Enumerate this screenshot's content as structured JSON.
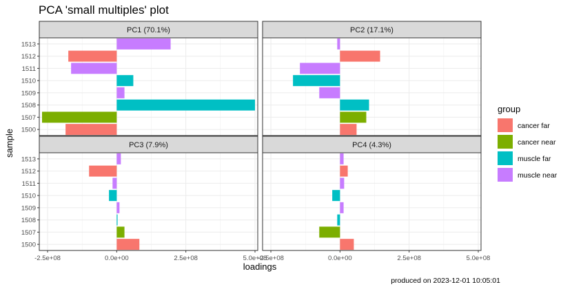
{
  "chart_data": {
    "type": "bar",
    "orientation": "horizontal",
    "title": "PCA 'small multiples' plot",
    "xlabel": "loadings",
    "ylabel": "sample",
    "caption": "produced on 2023-12-01 10:05:01",
    "xlim": [
      -280000000,
      510000000
    ],
    "x_ticks": [
      -250000000,
      0,
      250000000,
      500000000
    ],
    "x_tick_labels": [
      "-2.5e+08",
      "0.0e+00",
      "2.5e+08",
      "5.0e+08"
    ],
    "categories": [
      "1513",
      "1512",
      "1511",
      "1510",
      "1509",
      "1508",
      "1507",
      "1500"
    ],
    "sample_groups": [
      "muscle near",
      "cancer far",
      "muscle near",
      "muscle far",
      "muscle near",
      "muscle far",
      "cancer near",
      "cancer far"
    ],
    "legend": {
      "title": "group",
      "position": "right",
      "entries": [
        {
          "label": "cancer far",
          "color": "#F8766D"
        },
        {
          "label": "cancer near",
          "color": "#7CAE00"
        },
        {
          "label": "muscle far",
          "color": "#00BFC4"
        },
        {
          "label": "muscle near",
          "color": "#C77CFF"
        }
      ]
    },
    "grid": true,
    "panels": [
      {
        "label": "PC1 (70.1%)",
        "values": [
          195000000,
          -175000000,
          -165000000,
          60000000,
          28000000,
          500000000,
          -270000000,
          -185000000
        ]
      },
      {
        "label": "PC2 (17.1%)",
        "values": [
          -10000000,
          145000000,
          -145000000,
          -170000000,
          -75000000,
          105000000,
          95000000,
          60000000
        ]
      },
      {
        "label": "PC3 (7.9%)",
        "values": [
          15000000,
          -100000000,
          -15000000,
          -28000000,
          10000000,
          3000000,
          28000000,
          82000000
        ]
      },
      {
        "label": "PC4 (4.3%)",
        "values": [
          13000000,
          28000000,
          15000000,
          -28000000,
          13000000,
          -10000000,
          -75000000,
          50000000
        ]
      }
    ]
  }
}
